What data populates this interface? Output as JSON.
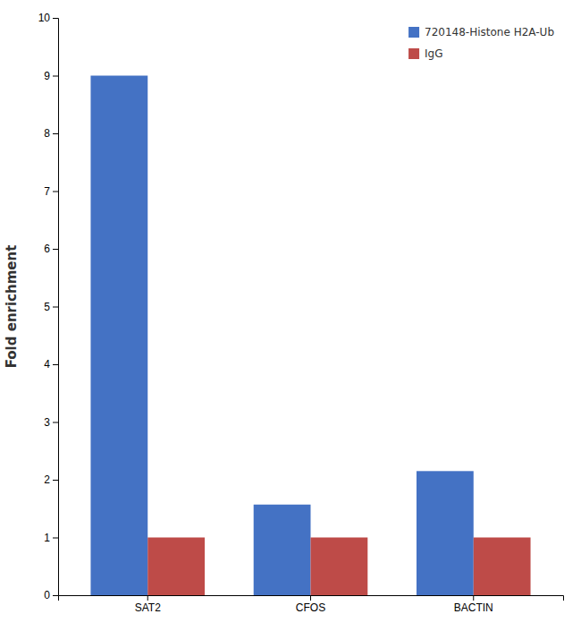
{
  "chart_data": {
    "type": "bar",
    "categories": [
      "SAT2",
      "CFOS",
      "BACTIN"
    ],
    "series": [
      {
        "name": "720148-Histone H2A-Ub",
        "color": "#4472C4",
        "values": [
          9.0,
          1.57,
          2.15
        ]
      },
      {
        "name": "IgG",
        "color": "#BE4B48",
        "values": [
          1.0,
          1.0,
          1.0
        ]
      }
    ],
    "ylabel": "Fold enrichment",
    "ylim": [
      0,
      10
    ],
    "yticks": [
      0,
      1,
      2,
      3,
      4,
      5,
      6,
      7,
      8,
      9,
      10
    ],
    "grid": false,
    "legend": "upper right"
  }
}
